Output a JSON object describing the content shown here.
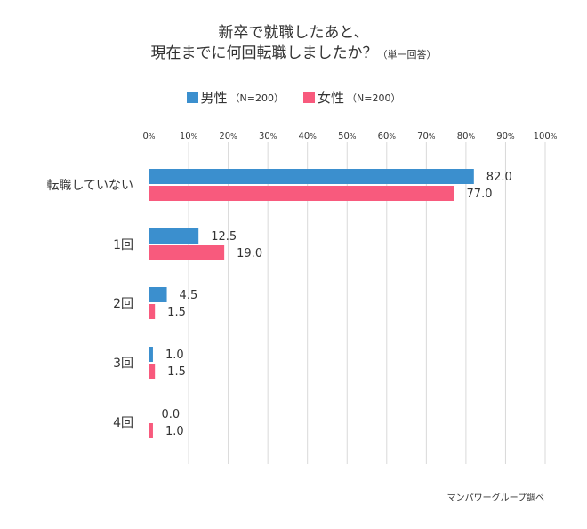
{
  "chart_data": {
    "type": "bar",
    "orientation": "horizontal",
    "title_line1": "新卒で就職したあと、",
    "title_line2": "現在までに何回転職しましたか？",
    "title_note": "（単一回答）",
    "categories": [
      "転職していない",
      "1回",
      "2回",
      "3回",
      "4回"
    ],
    "series": [
      {
        "name": "男性",
        "n_label": "（N=200）",
        "color": "#3b8fce",
        "values": [
          82.0,
          12.5,
          4.5,
          1.0,
          0.0
        ]
      },
      {
        "name": "女性",
        "n_label": "（N=200）",
        "color": "#f85a7d",
        "values": [
          77.0,
          19.0,
          1.5,
          1.5,
          1.0
        ]
      }
    ],
    "xlim": [
      0,
      100
    ],
    "x_ticks": [
      0,
      10,
      20,
      30,
      40,
      50,
      60,
      70,
      80,
      90,
      100
    ],
    "x_tick_suffix": "%",
    "grid": true,
    "legend_position": "top-center",
    "xlabel": "",
    "ylabel": "",
    "source": "マンパワーグループ調べ"
  }
}
